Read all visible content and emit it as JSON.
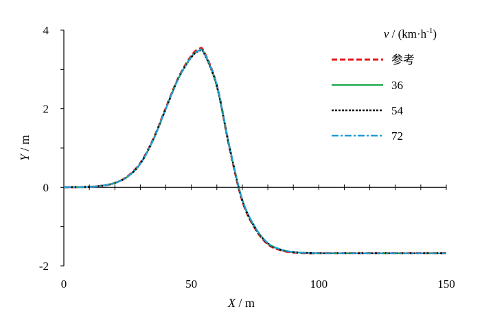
{
  "chart_data": {
    "type": "line",
    "xlabel": "X / m",
    "ylabel": "Y / m",
    "xlim": [
      0,
      150
    ],
    "ylim": [
      -2,
      4
    ],
    "xticks": [
      0,
      50,
      100,
      150
    ],
    "yticks": [
      -2,
      0,
      2,
      4
    ],
    "grid": false,
    "legend_title": "v / (km·h-1)",
    "legend_position": "top-right",
    "x": [
      0,
      5,
      10,
      15,
      20,
      25,
      30,
      35,
      40,
      45,
      50,
      53,
      55,
      60,
      65,
      70,
      75,
      80,
      85,
      90,
      95,
      100,
      110,
      120,
      130,
      140,
      150
    ],
    "series": [
      {
        "name": "参考",
        "color": "#e8161a",
        "dash": "dashed",
        "values": [
          0,
          0.003,
          0.012,
          0.04,
          0.11,
          0.28,
          0.62,
          1.22,
          2.02,
          2.8,
          3.35,
          3.52,
          3.45,
          2.6,
          1.0,
          -0.35,
          -1.05,
          -1.45,
          -1.6,
          -1.66,
          -1.68,
          -1.68,
          -1.68,
          -1.68,
          -1.68,
          -1.68,
          -1.68
        ]
      },
      {
        "name": "36",
        "color": "#1aa64a",
        "dash": "solid",
        "values": [
          0,
          0.003,
          0.012,
          0.04,
          0.11,
          0.27,
          0.6,
          1.2,
          2.0,
          2.78,
          3.32,
          3.48,
          3.42,
          2.58,
          1.02,
          -0.32,
          -1.02,
          -1.42,
          -1.58,
          -1.65,
          -1.67,
          -1.68,
          -1.68,
          -1.68,
          -1.68,
          -1.68,
          -1.68
        ]
      },
      {
        "name": "54",
        "color": "#000000",
        "dash": "dotted",
        "values": [
          0,
          0.003,
          0.012,
          0.04,
          0.11,
          0.27,
          0.6,
          1.2,
          2.0,
          2.78,
          3.31,
          3.47,
          3.41,
          2.57,
          1.01,
          -0.33,
          -1.03,
          -1.43,
          -1.59,
          -1.65,
          -1.67,
          -1.68,
          -1.68,
          -1.68,
          -1.68,
          -1.68,
          -1.68
        ]
      },
      {
        "name": "72",
        "color": "#1e9fd6",
        "dash": "dashdot",
        "values": [
          0,
          0.003,
          0.012,
          0.04,
          0.11,
          0.27,
          0.6,
          1.2,
          2.0,
          2.78,
          3.32,
          3.48,
          3.43,
          2.6,
          1.03,
          -0.31,
          -1.01,
          -1.42,
          -1.58,
          -1.65,
          -1.67,
          -1.68,
          -1.68,
          -1.68,
          -1.68,
          -1.68,
          -1.68
        ]
      }
    ]
  }
}
